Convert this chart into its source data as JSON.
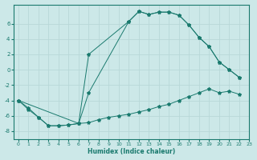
{
  "xlabel": "Humidex (Indice chaleur)",
  "background_color": "#cce8e8",
  "grid_color": "#b8d8d8",
  "line_color": "#1a7a6e",
  "line1_x": [
    0,
    1,
    2,
    3,
    4,
    5,
    6,
    7,
    8,
    9,
    10,
    11,
    12,
    13,
    14,
    15,
    16,
    17,
    18,
    19,
    20,
    21,
    22
  ],
  "line1_y": [
    -4.0,
    -5.2,
    -6.2,
    -7.3,
    -7.3,
    -7.2,
    -7.0,
    -6.9,
    -6.5,
    -6.2,
    -6.0,
    -5.8,
    -5.5,
    -5.2,
    -4.8,
    -4.5,
    -4.0,
    -3.5,
    -3.0,
    -2.5,
    -3.0,
    -2.8,
    -3.2
  ],
  "line2_x": [
    0,
    1,
    2,
    3,
    4,
    5,
    6,
    7,
    11,
    12,
    13,
    14,
    15,
    16,
    17,
    18,
    19,
    20,
    21,
    22
  ],
  "line2_y": [
    -4.0,
    -5.0,
    -6.2,
    -7.3,
    -7.3,
    -7.2,
    -7.0,
    -3.0,
    6.3,
    7.6,
    7.2,
    7.5,
    7.5,
    7.1,
    5.8,
    4.2,
    3.0,
    1.0,
    0.0,
    -1.0
  ],
  "line3_x": [
    0,
    6,
    7,
    11,
    12,
    13,
    14,
    15,
    16,
    17,
    18,
    19,
    20,
    21,
    22
  ],
  "line3_y": [
    -4.0,
    -7.0,
    2.0,
    6.3,
    7.6,
    7.2,
    7.5,
    7.5,
    7.1,
    5.8,
    4.2,
    3.0,
    1.0,
    0.0,
    -1.0
  ],
  "xlim": [
    -0.5,
    23
  ],
  "ylim": [
    -9,
    8.5
  ],
  "yticks": [
    -8,
    -6,
    -4,
    -2,
    0,
    2,
    4,
    6
  ],
  "xticks": [
    0,
    1,
    2,
    3,
    4,
    5,
    6,
    7,
    8,
    9,
    10,
    11,
    12,
    13,
    14,
    15,
    16,
    17,
    18,
    19,
    20,
    21,
    22,
    23
  ]
}
